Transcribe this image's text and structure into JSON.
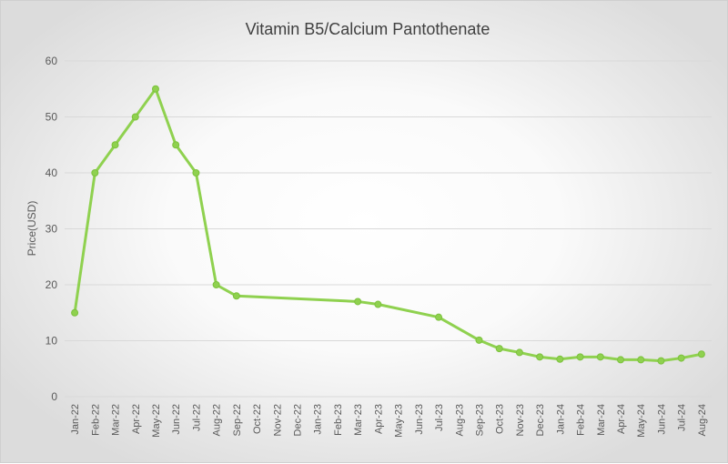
{
  "chart_data": {
    "type": "line",
    "title": "Vitamin B5/Calcium Pantothenate",
    "xlabel": "",
    "ylabel": "Price(USD)",
    "ylim": [
      0,
      60
    ],
    "yticks": [
      0,
      10,
      20,
      30,
      40,
      50,
      60
    ],
    "grid": true,
    "color": "#8fd14f",
    "categories": [
      "Jan-22",
      "Feb-22",
      "Mar-22",
      "Apr-22",
      "May-22",
      "Jun-22",
      "Jul-22",
      "Aug-22",
      "Sep-22",
      "Oct-22",
      "Nov-22",
      "Dec-22",
      "Jan-23",
      "Feb-23",
      "Mar-23",
      "Apr-23",
      "May-23",
      "Jun-23",
      "Jul-23",
      "Aug-23",
      "Sep-23",
      "Oct-23",
      "Nov-23",
      "Dec-23",
      "Jan-24",
      "Feb-24",
      "Mar-24",
      "Apr-24",
      "May-24",
      "Jun-24",
      "Jul-24",
      "Aug-24"
    ],
    "series": [
      {
        "points": [
          {
            "x": "Jan-22",
            "y": 15
          },
          {
            "x": "Feb-22",
            "y": 40
          },
          {
            "x": "Mar-22",
            "y": 45
          },
          {
            "x": "Apr-22",
            "y": 50
          },
          {
            "x": "May-22",
            "y": 55
          },
          {
            "x": "Jun-22",
            "y": 45
          },
          {
            "x": "Jul-22",
            "y": 40
          },
          {
            "x": "Aug-22",
            "y": 20
          },
          {
            "x": "Sep-22",
            "y": 18
          },
          {
            "x": "Mar-23",
            "y": 17
          },
          {
            "x": "Apr-23",
            "y": 16.5
          },
          {
            "x": "Jul-23",
            "y": 14.2
          },
          {
            "x": "Sep-23",
            "y": 10.1
          },
          {
            "x": "Oct-23",
            "y": 8.6
          },
          {
            "x": "Nov-23",
            "y": 7.9
          },
          {
            "x": "Dec-23",
            "y": 7.1
          },
          {
            "x": "Jan-24",
            "y": 6.7
          },
          {
            "x": "Feb-24",
            "y": 7.1
          },
          {
            "x": "Mar-24",
            "y": 7.1
          },
          {
            "x": "Apr-24",
            "y": 6.6
          },
          {
            "x": "May-24",
            "y": 6.6
          },
          {
            "x": "Jun-24",
            "y": 6.4
          },
          {
            "x": "Jul-24",
            "y": 6.9
          },
          {
            "x": "Aug-24",
            "y": 7.6
          }
        ]
      }
    ]
  }
}
